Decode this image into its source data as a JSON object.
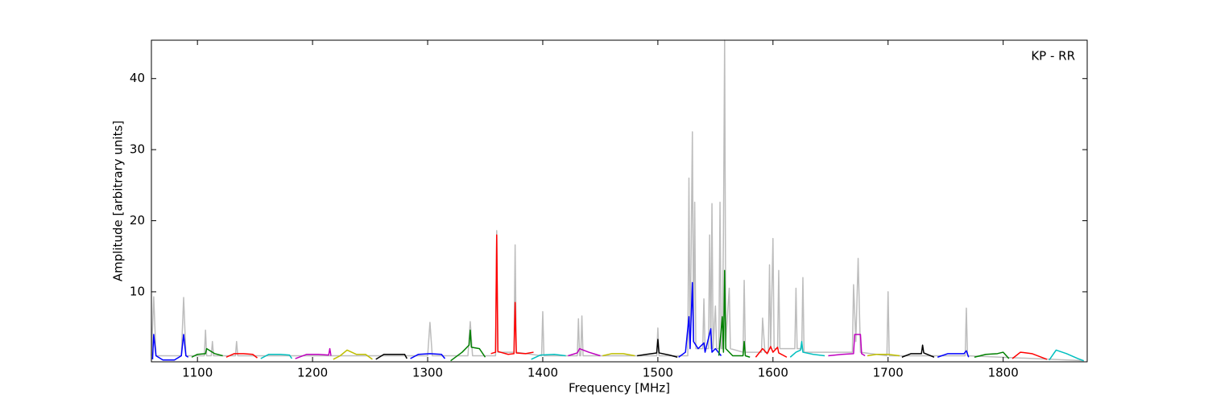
{
  "chart_data": {
    "type": "line",
    "xlabel": "Frequency [MHz]",
    "ylabel": "Amplitude [arbitrary units]",
    "annotation": "KP - RR",
    "xlim": [
      1060,
      1873
    ],
    "ylim": [
      0.15,
      45.4
    ],
    "xticks": [
      1100,
      1200,
      1300,
      1400,
      1500,
      1600,
      1700,
      1800
    ],
    "yticks": [
      10,
      20,
      30,
      40
    ],
    "series": [
      {
        "color": "#bdbdbd",
        "x": [
          1060,
          1062,
          1064,
          1086,
          1088,
          1090,
          1106,
          1107,
          1108,
          1112,
          1113,
          1114,
          1133,
          1134,
          1135,
          1300,
          1302,
          1304,
          1335,
          1337,
          1339,
          1359,
          1360,
          1361,
          1375,
          1376,
          1377,
          1399,
          1400,
          1401,
          1430,
          1431,
          1432,
          1433,
          1434,
          1435,
          1499,
          1500,
          1501,
          1526,
          1527,
          1528,
          1530,
          1531,
          1532,
          1533,
          1539,
          1540,
          1541,
          1544,
          1545,
          1546,
          1547,
          1548,
          1550,
          1551,
          1553,
          1554,
          1555,
          1556,
          1557,
          1558,
          1559,
          1562,
          1563,
          1574,
          1575,
          1576,
          1590,
          1591,
          1593,
          1596,
          1597,
          1598,
          1600,
          1601,
          1604,
          1605,
          1606,
          1619,
          1620,
          1621,
          1625,
          1626,
          1627,
          1669,
          1670,
          1672,
          1674,
          1676,
          1699,
          1700,
          1701,
          1767,
          1768,
          1769,
          1870
        ],
        "values": [
          1,
          9.3,
          1,
          1,
          9.2,
          1,
          1,
          4.6,
          1,
          1,
          3,
          1,
          1,
          3,
          1,
          1,
          5.7,
          1,
          1,
          5.8,
          1,
          1,
          18.6,
          1.5,
          1.5,
          16.6,
          1.5,
          1,
          7.2,
          1,
          1,
          6.2,
          1,
          1,
          6.6,
          1,
          1,
          4.9,
          1,
          1,
          26,
          2,
          32.5,
          3,
          22.6,
          2,
          2,
          9,
          2,
          2,
          18,
          2,
          22.4,
          2,
          8,
          2,
          2,
          22.6,
          2,
          2,
          18.4,
          45.4,
          3,
          10.5,
          2,
          1.5,
          11.6,
          1.5,
          1.5,
          6.3,
          1.5,
          1.5,
          13.8,
          2,
          17.5,
          2,
          2,
          13,
          2,
          2,
          10.5,
          2,
          2,
          12,
          1.5,
          1.5,
          11,
          3,
          14.7,
          1.5,
          1,
          10,
          1,
          1,
          7.7,
          1,
          0.3
        ]
      },
      {
        "color": "#0000ff",
        "x": [
          1061,
          1062,
          1064,
          1070,
          1080,
          1086,
          1088,
          1090,
          1092
        ],
        "values": [
          0.5,
          4,
          1,
          0.4,
          0.4,
          1,
          4,
          1,
          0.8
        ]
      },
      {
        "color": "#008000",
        "x": [
          1095,
          1100,
          1107,
          1108,
          1115,
          1122
        ],
        "values": [
          0.8,
          1.2,
          1.3,
          2,
          1.3,
          1
        ]
      },
      {
        "color": "#ff0000",
        "x": [
          1125,
          1132,
          1140,
          1148,
          1152
        ],
        "values": [
          0.8,
          1.3,
          1.3,
          1.2,
          0.7
        ]
      },
      {
        "color": "#00bfbf",
        "x": [
          1155,
          1162,
          1172,
          1180,
          1182
        ],
        "values": [
          0.6,
          1.2,
          1.2,
          1.1,
          0.6
        ]
      },
      {
        "color": "#bf00bf",
        "x": [
          1185,
          1195,
          1205,
          1214,
          1215,
          1216
        ],
        "values": [
          0.6,
          1.2,
          1.2,
          1.1,
          2,
          1
        ]
      },
      {
        "color": "#bfbf00",
        "x": [
          1218,
          1224,
          1230,
          1238,
          1246,
          1252
        ],
        "values": [
          0.5,
          1,
          1.8,
          1.2,
          1.2,
          0.5
        ]
      },
      {
        "color": "#000000",
        "x": [
          1255,
          1262,
          1272,
          1280,
          1282
        ],
        "values": [
          0.5,
          1.2,
          1.2,
          1.2,
          0.6
        ]
      },
      {
        "color": "#0000ff",
        "x": [
          1285,
          1292,
          1302,
          1312,
          1315
        ],
        "values": [
          0.6,
          1.2,
          1.3,
          1.2,
          0.6
        ]
      },
      {
        "color": "#008000",
        "x": [
          1320,
          1330,
          1336,
          1337,
          1338,
          1345,
          1350
        ],
        "values": [
          0.3,
          1.5,
          2.5,
          4.6,
          2.2,
          2,
          0.8
        ]
      },
      {
        "color": "#ff0000",
        "x": [
          1355,
          1359,
          1360,
          1361,
          1370,
          1375,
          1376,
          1377,
          1385,
          1392
        ],
        "values": [
          1.3,
          1.5,
          18,
          1.6,
          1.2,
          1.3,
          8.5,
          1.4,
          1.3,
          1.5
        ]
      },
      {
        "color": "#00bfbf",
        "x": [
          1390,
          1398,
          1410,
          1420
        ],
        "values": [
          0.5,
          1.1,
          1.2,
          1
        ]
      },
      {
        "color": "#bf00bf",
        "x": [
          1422,
          1430,
          1432,
          1440,
          1450
        ],
        "values": [
          1,
          1.4,
          2,
          1.5,
          1
        ]
      },
      {
        "color": "#bfbf00",
        "x": [
          1452,
          1460,
          1470,
          1480
        ],
        "values": [
          1,
          1.3,
          1.3,
          1
        ]
      },
      {
        "color": "#000000",
        "x": [
          1482,
          1490,
          1499,
          1500,
          1501,
          1510,
          1517
        ],
        "values": [
          1,
          1.2,
          1.4,
          3.3,
          1.4,
          1.1,
          0.8
        ]
      },
      {
        "color": "#0000ff",
        "x": [
          1518,
          1524,
          1527,
          1528,
          1530,
          1531,
          1535,
          1540,
          1541,
          1546,
          1547,
          1550,
          1555
        ],
        "values": [
          0.8,
          1.5,
          6.5,
          2,
          11.3,
          3,
          2,
          2.8,
          1.5,
          4.8,
          1.5,
          2,
          1
        ]
      },
      {
        "color": "#008000",
        "x": [
          1553,
          1556,
          1557,
          1558,
          1559,
          1565,
          1574,
          1575,
          1576,
          1580
        ],
        "values": [
          1,
          6.5,
          1.5,
          13,
          2,
          1,
          1,
          3,
          1,
          0.8
        ]
      },
      {
        "color": "#ff0000",
        "x": [
          1585,
          1591,
          1595,
          1598,
          1600,
          1604,
          1605,
          1612
        ],
        "values": [
          0.8,
          2,
          1.3,
          2.3,
          1.5,
          2.2,
          1.4,
          0.8
        ]
      },
      {
        "color": "#00bfbf",
        "x": [
          1615,
          1620,
          1624,
          1625,
          1626,
          1635,
          1645
        ],
        "values": [
          0.8,
          1.5,
          1.8,
          3,
          1.5,
          1.2,
          1
        ]
      },
      {
        "color": "#bf00bf",
        "x": [
          1648,
          1660,
          1670,
          1671,
          1676,
          1677,
          1680
        ],
        "values": [
          1,
          1.2,
          1.3,
          4,
          4,
          1.3,
          1
        ]
      },
      {
        "color": "#bfbf00",
        "x": [
          1682,
          1690,
          1700,
          1710
        ],
        "values": [
          1,
          1.2,
          1.2,
          1
        ]
      },
      {
        "color": "#000000",
        "x": [
          1712,
          1720,
          1729,
          1730,
          1731,
          1740
        ],
        "values": [
          0.8,
          1.3,
          1.3,
          2.5,
          1.4,
          0.8
        ]
      },
      {
        "color": "#0000ff",
        "x": [
          1743,
          1752,
          1766,
          1768,
          1770
        ],
        "values": [
          0.8,
          1.3,
          1.3,
          1.7,
          0.8
        ]
      },
      {
        "color": "#008000",
        "x": [
          1775,
          1785,
          1795,
          1800,
          1805
        ],
        "values": [
          0.8,
          1.2,
          1.3,
          1.5,
          0.6
        ]
      },
      {
        "color": "#ff0000",
        "x": [
          1808,
          1815,
          1825,
          1838
        ],
        "values": [
          0.6,
          1.5,
          1.3,
          0.5
        ]
      },
      {
        "color": "#00bfbf",
        "x": [
          1840,
          1846,
          1855,
          1865,
          1870
        ],
        "values": [
          0.4,
          1.8,
          1.3,
          0.6,
          0.3
        ]
      }
    ]
  }
}
